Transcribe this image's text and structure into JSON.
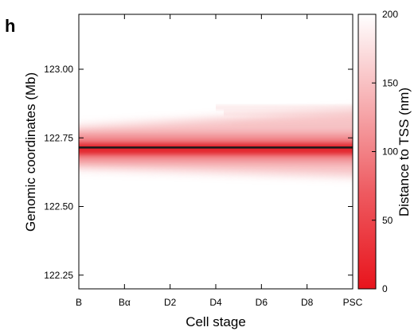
{
  "panel_label": "h",
  "chart_data": {
    "type": "heatmap",
    "xlabel": "Cell stage",
    "ylabel": "Genomic coordinates (Mb)",
    "categories": [
      "B",
      "Bα",
      "D2",
      "D4",
      "D6",
      "D8",
      "PSC"
    ],
    "y_ticks": [
      122.25,
      122.5,
      122.75,
      123.0
    ],
    "y_tick_labels": [
      "122.25",
      "122.50",
      "122.75",
      "123.00"
    ],
    "ylim": [
      122.2,
      123.2
    ],
    "tss_line_y": 122.715,
    "signal_band": {
      "core": [
        122.69,
        122.73
      ],
      "envelope_low": [
        122.61,
        122.64
      ],
      "envelope_high": [
        122.79,
        122.85
      ]
    },
    "colorbar": {
      "label": "Distance to TSS (nm)",
      "ticks": [
        0,
        50,
        100,
        150,
        200
      ],
      "tick_labels": [
        "0",
        "50",
        "100",
        "150",
        "200"
      ],
      "range": [
        0,
        200
      ],
      "low_color": "#e8141c",
      "high_color": "#ffffff"
    },
    "grid": false
  }
}
